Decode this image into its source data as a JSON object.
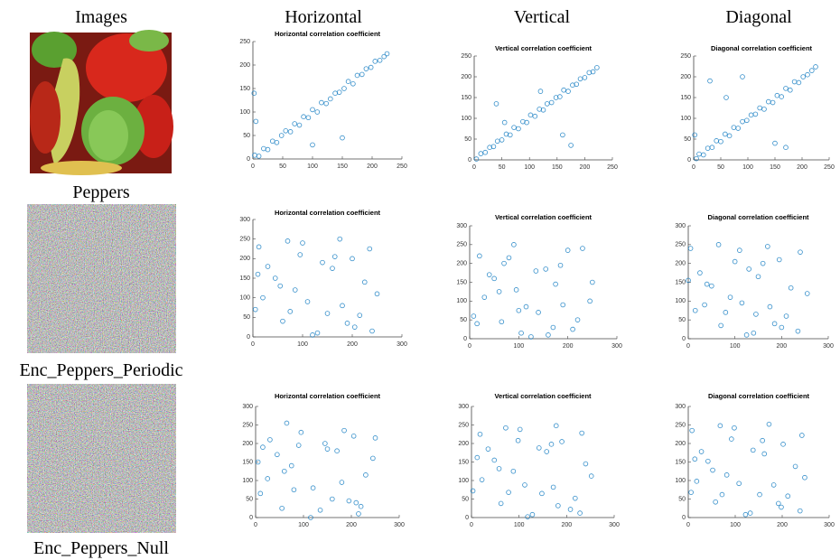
{
  "columns": [
    "Images",
    "Horizontal",
    "Vertical",
    "Diagonal"
  ],
  "rows": [
    "Peppers",
    "Enc_Peppers_Periodic",
    "Enc_Peppers_Null"
  ],
  "chart_data": [
    {
      "type": "scatter",
      "title": "Horizontal correlation coefficient",
      "color": "#0072bd",
      "x": [
        3,
        10,
        18,
        25,
        33,
        40,
        48,
        55,
        63,
        70,
        78,
        85,
        93,
        100,
        108,
        115,
        123,
        130,
        138,
        145,
        153,
        160,
        168,
        175,
        183,
        190,
        198,
        205,
        213,
        220,
        225,
        5,
        2,
        150,
        100
      ],
      "values": [
        8,
        6,
        22,
        20,
        38,
        35,
        50,
        60,
        58,
        75,
        72,
        90,
        88,
        105,
        100,
        120,
        118,
        128,
        140,
        142,
        150,
        165,
        160,
        178,
        180,
        192,
        195,
        208,
        210,
        218,
        224,
        80,
        140,
        45,
        30
      ],
      "xlim": [
        0,
        250
      ],
      "ylim": [
        0,
        250
      ],
      "xticks": [
        0,
        50,
        100,
        150,
        200,
        250
      ],
      "yticks": [
        0,
        50,
        100,
        150,
        200,
        250
      ]
    },
    {
      "type": "scatter",
      "title": "Vertical correlation coefficient",
      "color": "#0072bd",
      "x": [
        4,
        12,
        20,
        28,
        35,
        42,
        50,
        58,
        65,
        72,
        80,
        88,
        95,
        102,
        110,
        118,
        125,
        132,
        140,
        148,
        155,
        162,
        170,
        178,
        185,
        192,
        200,
        208,
        215,
        222,
        40,
        55,
        120,
        160,
        175
      ],
      "values": [
        2,
        15,
        18,
        30,
        32,
        45,
        48,
        62,
        60,
        78,
        75,
        92,
        90,
        108,
        105,
        122,
        120,
        135,
        138,
        150,
        152,
        168,
        165,
        180,
        182,
        195,
        198,
        210,
        212,
        222,
        135,
        90,
        165,
        60,
        35
      ],
      "xlim": [
        0,
        250
      ],
      "ylim": [
        0,
        250
      ],
      "xticks": [
        0,
        50,
        100,
        150,
        200,
        250
      ],
      "yticks": [
        0,
        50,
        100,
        150,
        200,
        250
      ]
    },
    {
      "type": "scatter",
      "title": "Diagonal correlation coefficient",
      "color": "#0072bd",
      "x": [
        5,
        10,
        18,
        26,
        34,
        42,
        50,
        58,
        66,
        74,
        82,
        90,
        98,
        106,
        114,
        122,
        130,
        138,
        146,
        154,
        162,
        170,
        178,
        186,
        194,
        202,
        210,
        218,
        225,
        30,
        60,
        90,
        150,
        170,
        2
      ],
      "values": [
        3,
        14,
        12,
        28,
        30,
        46,
        44,
        62,
        58,
        78,
        76,
        92,
        95,
        108,
        110,
        125,
        122,
        140,
        138,
        155,
        152,
        172,
        168,
        188,
        186,
        200,
        205,
        215,
        224,
        190,
        150,
        200,
        40,
        30,
        60
      ],
      "xlim": [
        0,
        250
      ],
      "ylim": [
        0,
        250
      ],
      "xticks": [
        0,
        50,
        100,
        150,
        200,
        250
      ],
      "yticks": [
        0,
        50,
        100,
        150,
        200,
        250
      ]
    },
    {
      "type": "scatter",
      "title": "Horizontal correlation coefficient",
      "color": "#0072bd",
      "x": [
        12,
        240,
        85,
        150,
        30,
        200,
        60,
        175,
        110,
        225,
        5,
        130,
        95,
        250,
        45,
        190,
        70,
        160,
        20,
        215,
        120,
        140,
        235,
        55,
        180,
        100,
        10,
        205,
        75,
        165
      ],
      "values": [
        230,
        15,
        120,
        60,
        180,
        200,
        40,
        250,
        90,
        140,
        70,
        10,
        210,
        110,
        150,
        35,
        245,
        175,
        100,
        55,
        5,
        190,
        225,
        130,
        80,
        240,
        160,
        25,
        65,
        205
      ],
      "xlim": [
        0,
        300
      ],
      "ylim": [
        0,
        300
      ],
      "xticks": [
        0,
        100,
        200,
        300
      ],
      "yticks": [
        0,
        50,
        100,
        150,
        200,
        250,
        300
      ]
    },
    {
      "type": "scatter",
      "title": "Vertical correlation coefficient",
      "color": "#0072bd",
      "x": [
        20,
        210,
        95,
        140,
        40,
        185,
        65,
        230,
        115,
        250,
        8,
        125,
        80,
        245,
        50,
        170,
        90,
        155,
        30,
        220,
        105,
        135,
        200,
        60,
        190,
        15,
        175,
        70,
        160,
        100
      ],
      "values": [
        220,
        25,
        130,
        70,
        170,
        195,
        45,
        240,
        85,
        150,
        60,
        5,
        215,
        100,
        160,
        30,
        250,
        185,
        110,
        50,
        15,
        180,
        235,
        125,
        90,
        40,
        145,
        200,
        10,
        75
      ],
      "xlim": [
        0,
        300
      ],
      "ylim": [
        0,
        300
      ],
      "xticks": [
        0,
        100,
        200,
        300
      ],
      "yticks": [
        0,
        50,
        100,
        150,
        200,
        250,
        300
      ]
    },
    {
      "type": "scatter",
      "title": "Diagonal correlation coefficient",
      "color": "#0072bd",
      "x": [
        5,
        235,
        90,
        145,
        25,
        195,
        70,
        170,
        115,
        220,
        15,
        140,
        100,
        255,
        40,
        185,
        65,
        150,
        35,
        210,
        125,
        130,
        240,
        50,
        175,
        110,
        0,
        200,
        80,
        160
      ],
      "values": [
        240,
        20,
        110,
        65,
        175,
        210,
        35,
        245,
        95,
        135,
        75,
        15,
        205,
        120,
        145,
        40,
        250,
        165,
        90,
        60,
        10,
        185,
        230,
        140,
        85,
        235,
        155,
        30,
        70,
        200
      ],
      "xlim": [
        0,
        300
      ],
      "ylim": [
        0,
        300
      ],
      "xticks": [
        0,
        100,
        200,
        300
      ],
      "yticks": [
        0,
        50,
        100,
        150,
        200,
        250,
        300
      ]
    },
    {
      "type": "scatter",
      "title": "Horizontal correlation coefficient",
      "color": "#0072bd",
      "x": [
        30,
        220,
        75,
        160,
        15,
        205,
        55,
        185,
        120,
        245,
        10,
        135,
        90,
        230,
        45,
        195,
        65,
        170,
        25,
        210,
        115,
        145,
        250,
        60,
        180,
        95,
        5,
        215,
        80,
        150
      ],
      "values": [
        210,
        30,
        140,
        50,
        190,
        220,
        25,
        235,
        80,
        160,
        65,
        20,
        195,
        115,
        170,
        45,
        255,
        180,
        105,
        40,
        0,
        200,
        215,
        125,
        95,
        230,
        150,
        10,
        75,
        185
      ],
      "xlim": [
        0,
        300
      ],
      "ylim": [
        0,
        300
      ],
      "xticks": [
        0,
        100,
        200,
        300
      ],
      "yticks": [
        0,
        50,
        100,
        150,
        200,
        250,
        300
      ]
    },
    {
      "type": "scatter",
      "title": "Vertical correlation coefficient",
      "color": "#0072bd",
      "x": [
        18,
        228,
        88,
        148,
        35,
        190,
        62,
        178,
        112,
        240,
        3,
        128,
        98,
        252,
        48,
        182,
        72,
        158,
        22,
        218,
        118,
        142,
        232,
        58,
        172,
        102,
        12,
        208,
        78,
        168
      ],
      "values": [
        225,
        12,
        125,
        65,
        185,
        205,
        38,
        248,
        88,
        145,
        72,
        8,
        208,
        112,
        155,
        32,
        242,
        178,
        102,
        52,
        2,
        188,
        228,
        132,
        82,
        238,
        162,
        22,
        68,
        198
      ],
      "xlim": [
        0,
        300
      ],
      "ylim": [
        0,
        300
      ],
      "xticks": [
        0,
        100,
        200,
        300
      ],
      "yticks": [
        0,
        50,
        100,
        150,
        200,
        250,
        300
      ]
    },
    {
      "type": "scatter",
      "title": "Diagonal correlation coefficient",
      "color": "#0072bd",
      "x": [
        8,
        238,
        82,
        152,
        28,
        202,
        58,
        172,
        108,
        228,
        6,
        132,
        92,
        248,
        42,
        192,
        68,
        162,
        18,
        212,
        122,
        138,
        242,
        52,
        182,
        98,
        14,
        198,
        72,
        158
      ],
      "values": [
        235,
        18,
        115,
        62,
        178,
        198,
        42,
        252,
        92,
        138,
        68,
        12,
        212,
        108,
        152,
        38,
        248,
        172,
        98,
        58,
        8,
        182,
        222,
        128,
        88,
        242,
        158,
        28,
        62,
        208
      ],
      "xlim": [
        0,
        300
      ],
      "ylim": [
        0,
        300
      ],
      "xticks": [
        0,
        100,
        200,
        300
      ],
      "yticks": [
        0,
        50,
        100,
        150,
        200,
        250,
        300
      ]
    }
  ]
}
